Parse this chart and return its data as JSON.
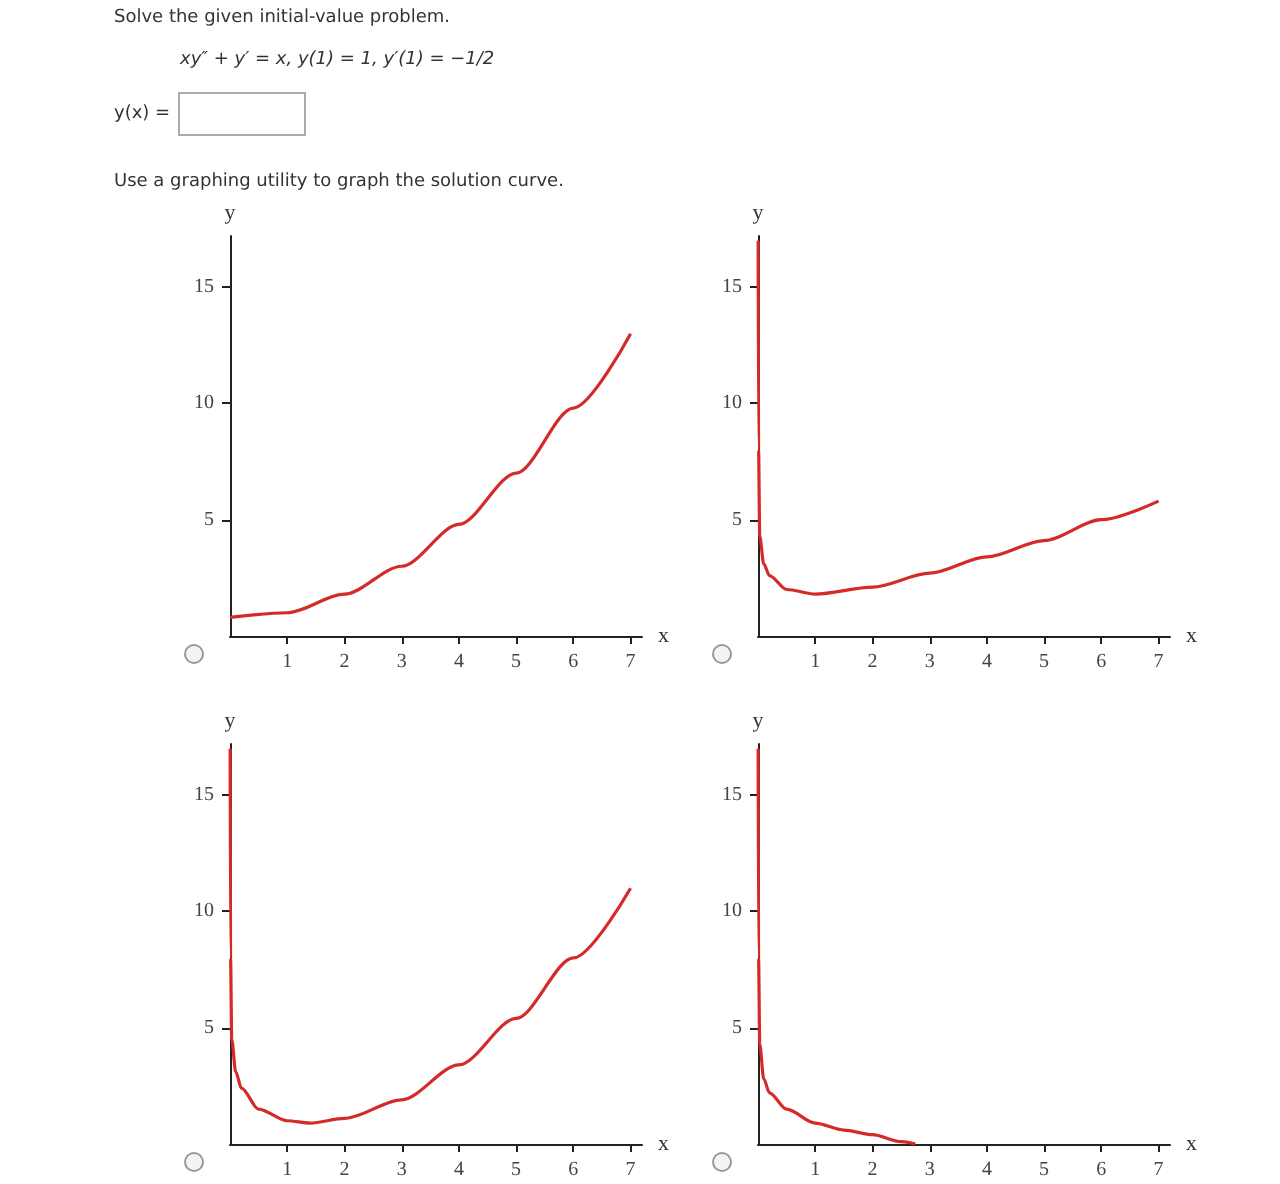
{
  "chart_data": [
    {
      "type": "line",
      "annotations": [
        "Solve the given initial-value problem.",
        "xy″ + y′ = x, y(1) = 1, y′(1) = −1/2",
        "y(x) =",
        "Use a graphing utility to graph the solution curve."
      ],
      "xlabel": "x",
      "ylabel": "y",
      "xlim": [
        0,
        7.2
      ],
      "ylim": [
        0,
        17.2
      ],
      "xticks": [
        1,
        2,
        3,
        4,
        5,
        6,
        7
      ],
      "yticks": [
        5,
        10,
        15
      ],
      "series": [
        {
          "color": "#d42a2a",
          "x": [
            0,
            1,
            2,
            3,
            4,
            5,
            6,
            7
          ],
          "values": [
            0.8,
            1,
            1.8,
            3,
            4.8,
            7,
            9.8,
            13
          ]
        }
      ]
    },
    {
      "type": "line",
      "xlabel": "x",
      "ylabel": "y",
      "xlim": [
        0,
        7.2
      ],
      "ylim": [
        0,
        17.2
      ],
      "xticks": [
        1,
        2,
        3,
        4,
        5,
        6,
        7
      ],
      "yticks": [
        5,
        10,
        15
      ],
      "series": [
        {
          "color": "#d42a2a",
          "x": [
            0.003,
            0.01,
            0.03,
            0.1,
            0.2,
            0.5,
            1,
            2,
            3,
            4,
            5,
            6,
            7
          ],
          "values": [
            17,
            8,
            4.3,
            3.1,
            2.6,
            2,
            1.8,
            2.1,
            2.7,
            3.4,
            4.1,
            5,
            5.8
          ]
        }
      ]
    },
    {
      "type": "line",
      "xlabel": "x",
      "ylabel": "y",
      "xlim": [
        0,
        7.2
      ],
      "ylim": [
        0,
        17.2
      ],
      "xticks": [
        1,
        2,
        3,
        4,
        5,
        6,
        7
      ],
      "yticks": [
        5,
        10,
        15
      ],
      "series": [
        {
          "color": "#d42a2a",
          "x": [
            0.003,
            0.01,
            0.03,
            0.1,
            0.2,
            0.5,
            1,
            1.4,
            2,
            3,
            4,
            5,
            6,
            7
          ],
          "values": [
            17,
            8,
            4.5,
            3.1,
            2.4,
            1.5,
            1,
            0.9,
            1.1,
            1.9,
            3.4,
            5.4,
            8,
            11
          ]
        }
      ]
    },
    {
      "type": "line",
      "xlabel": "x",
      "ylabel": "y",
      "xlim": [
        0,
        7.2
      ],
      "ylim": [
        0,
        17.2
      ],
      "xticks": [
        1,
        2,
        3,
        4,
        5,
        6,
        7
      ],
      "yticks": [
        5,
        10,
        15
      ],
      "series": [
        {
          "color": "#d42a2a",
          "x": [
            0.003,
            0.01,
            0.03,
            0.1,
            0.2,
            0.5,
            1,
            1.5,
            2,
            2.5,
            2.75
          ],
          "values": [
            17,
            8,
            4.3,
            2.8,
            2.2,
            1.5,
            0.9,
            0.6,
            0.4,
            0.1,
            0
          ]
        }
      ]
    }
  ]
}
